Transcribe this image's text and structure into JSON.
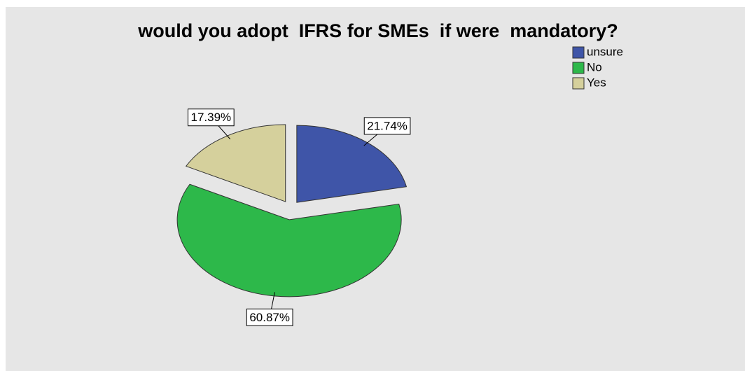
{
  "chart_data": {
    "type": "pie",
    "title": "would you adopt  IFRS for SMEs  if were  mandatory?",
    "categories": [
      "unsure",
      "No",
      "Yes"
    ],
    "values": [
      21.74,
      60.87,
      17.39
    ],
    "value_labels": [
      "21.74%",
      "60.87%",
      "17.39%"
    ],
    "colors": [
      "#3f55a8",
      "#2db84a",
      "#d5d09c"
    ],
    "legend": "top-right"
  }
}
